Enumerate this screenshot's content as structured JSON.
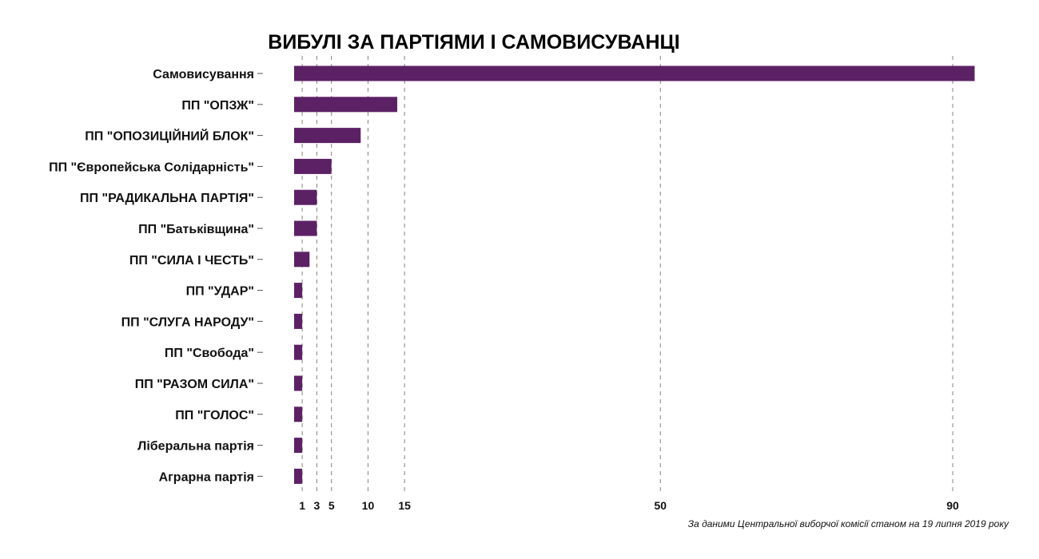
{
  "chart_data": {
    "type": "bar",
    "orientation": "horizontal",
    "title": "ВИБУЛІ ЗА ПАРТІЯМИ І САМОВИСУВАНЦІ",
    "caption": "За даними Центральної виборчої комісії станом на 19 липня 2019 року",
    "categories": [
      "Самовисування",
      "ПП \"ОПЗЖ\"",
      "ПП \"ОПОЗИЦІЙНИЙ БЛОК\"",
      "ПП \"Європейська Солідарність\"",
      "ПП \"РАДИКАЛЬНА ПАРТІЯ\"",
      "ПП \"Батьківщина\"",
      "ПП \"СИЛА І ЧЕСТЬ\"",
      "ПП \"УДАР\"",
      "ПП \"СЛУГА НАРОДУ\"",
      "ПП \"Свобода\"",
      "ПП \"РАЗОМ СИЛА\"",
      "ПП \"ГОЛОС\"",
      "Ліберальна партія",
      "Аграрна партія"
    ],
    "values": [
      93,
      14,
      9,
      5,
      3,
      3,
      2,
      1,
      1,
      1,
      1,
      1,
      1,
      1
    ],
    "xticks": [
      1,
      3,
      5,
      10,
      15,
      50,
      90
    ],
    "xlim": [
      0,
      95
    ],
    "grid": "vertical dashed",
    "bar_color": "#5c2165",
    "grid_color": "#8a8275"
  }
}
